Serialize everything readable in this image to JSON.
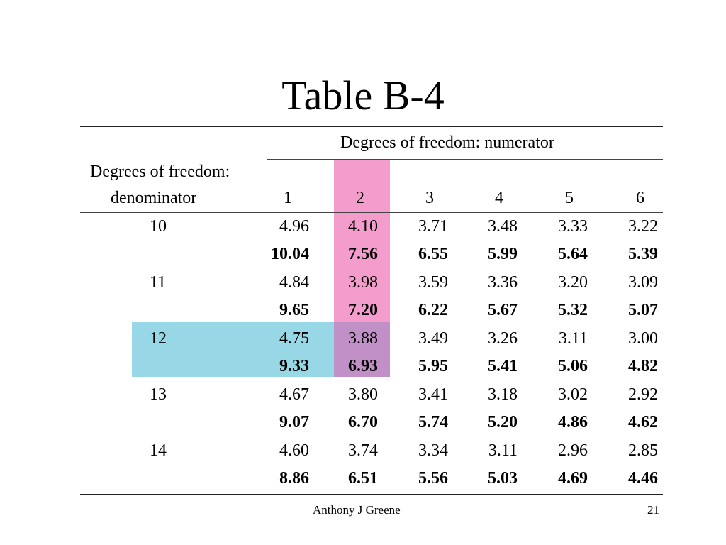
{
  "title": "Table B-4",
  "header": {
    "group_label": "Degrees of freedom: numerator",
    "row_label_line1": "Degrees of freedom:",
    "row_label_line2": "denominator",
    "columns": [
      "1",
      "2",
      "3",
      "4",
      "5",
      "6"
    ]
  },
  "rows": [
    {
      "df": "10",
      "a": [
        "4.96",
        "4.10",
        "3.71",
        "3.48",
        "3.33",
        "3.22"
      ],
      "b": [
        "10.04",
        "7.56",
        "6.55",
        "5.99",
        "5.64",
        "5.39"
      ]
    },
    {
      "df": "11",
      "a": [
        "4.84",
        "3.98",
        "3.59",
        "3.36",
        "3.20",
        "3.09"
      ],
      "b": [
        "9.65",
        "7.20",
        "6.22",
        "5.67",
        "5.32",
        "5.07"
      ]
    },
    {
      "df": "12",
      "a": [
        "4.75",
        "3.88",
        "3.49",
        "3.26",
        "3.11",
        "3.00"
      ],
      "b": [
        "9.33",
        "6.93",
        "5.95",
        "5.41",
        "5.06",
        "4.82"
      ]
    },
    {
      "df": "13",
      "a": [
        "4.67",
        "3.80",
        "3.41",
        "3.18",
        "3.02",
        "2.92"
      ],
      "b": [
        "9.07",
        "6.70",
        "5.74",
        "5.20",
        "4.86",
        "4.62"
      ]
    },
    {
      "df": "14",
      "a": [
        "4.60",
        "3.74",
        "3.34",
        "3.11",
        "2.96",
        "2.85"
      ],
      "b": [
        "8.86",
        "6.51",
        "5.56",
        "5.03",
        "4.69",
        "4.46"
      ]
    }
  ],
  "highlights": {
    "column_color": "#f49ccc",
    "row_color": "#98d8e6",
    "overlap_color": "#c190c6",
    "highlighted_column": "2",
    "highlighted_row": "12"
  },
  "footer": {
    "author": "Anthony J Greene",
    "page": "21"
  }
}
